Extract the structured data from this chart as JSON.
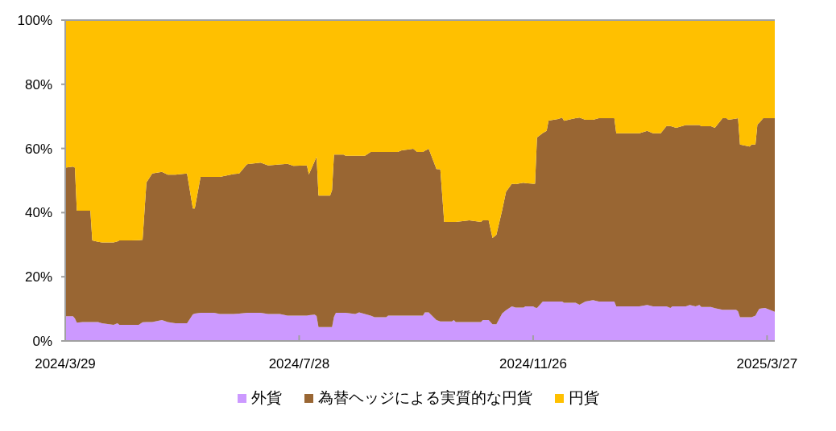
{
  "chart_data": {
    "type": "area",
    "stacked": true,
    "legend": "bottom",
    "x": [
      "2024-03-29",
      "2024-04-02",
      "2024-04-03",
      "2024-04-04",
      "2024-04-07",
      "2024-04-11",
      "2024-04-12",
      "2024-04-15",
      "2024-04-17",
      "2024-04-23",
      "2024-04-25",
      "2024-04-26",
      "2024-05-02",
      "2024-05-06",
      "2024-05-08",
      "2024-05-10",
      "2024-05-13",
      "2024-05-18",
      "2024-05-21",
      "2024-05-25",
      "2024-05-31",
      "2024-06-03",
      "2024-06-04",
      "2024-06-07",
      "2024-06-14",
      "2024-06-17",
      "2024-06-24",
      "2024-06-27",
      "2024-07-01",
      "2024-07-08",
      "2024-07-12",
      "2024-07-18",
      "2024-07-22",
      "2024-07-25",
      "2024-08-01",
      "2024-08-02",
      "2024-08-05",
      "2024-08-06",
      "2024-08-07",
      "2024-08-13",
      "2024-08-14",
      "2024-08-15",
      "2024-08-16",
      "2024-08-20",
      "2024-08-21",
      "2024-08-26",
      "2024-08-28",
      "2024-08-31",
      "2024-09-03",
      "2024-09-05",
      "2024-09-11",
      "2024-09-12",
      "2024-09-17",
      "2024-09-19",
      "2024-09-25",
      "2024-09-27",
      "2024-09-30",
      "2024-10-01",
      "2024-10-03",
      "2024-10-07",
      "2024-10-09",
      "2024-10-11",
      "2024-10-15",
      "2024-10-16",
      "2024-10-17",
      "2024-10-24",
      "2024-10-30",
      "2024-10-31",
      "2024-11-03",
      "2024-11-05",
      "2024-11-07",
      "2024-11-10",
      "2024-11-12",
      "2024-11-15",
      "2024-11-17",
      "2024-11-21",
      "2024-11-22",
      "2024-11-26",
      "2024-11-27",
      "2024-11-28",
      "2024-12-01",
      "2024-12-03",
      "2024-12-04",
      "2024-12-09",
      "2024-12-11",
      "2024-12-12",
      "2024-12-16",
      "2024-12-18",
      "2024-12-20",
      "2024-12-23",
      "2024-12-27",
      "2024-12-30",
      "2025-01-07",
      "2025-01-08",
      "2025-01-20",
      "2025-01-24",
      "2025-01-27",
      "2025-01-31",
      "2025-02-03",
      "2025-02-05",
      "2025-02-06",
      "2025-02-08",
      "2025-02-13",
      "2025-02-15",
      "2025-02-18",
      "2025-02-20",
      "2025-02-21",
      "2025-02-26",
      "2025-02-28",
      "2025-03-04",
      "2025-03-06",
      "2025-03-07",
      "2025-03-11",
      "2025-03-12",
      "2025-03-13",
      "2025-03-18",
      "2025-03-19",
      "2025-03-21",
      "2025-03-22",
      "2025-03-23",
      "2025-03-25",
      "2025-03-26",
      "2025-03-31"
    ],
    "series": [
      {
        "name": "外貨",
        "color": "#cc99ff",
        "values": [
          7.7,
          7.7,
          7.0,
          5.7,
          5.9,
          5.9,
          5.9,
          5.9,
          5.5,
          5.0,
          5.5,
          5.0,
          5.0,
          5.0,
          5.8,
          5.9,
          5.9,
          6.5,
          5.9,
          5.5,
          5.5,
          8.3,
          8.5,
          8.8,
          8.8,
          8.4,
          8.4,
          8.5,
          8.8,
          8.8,
          8.4,
          8.4,
          7.9,
          7.9,
          7.9,
          8.0,
          8.2,
          7.8,
          4.3,
          4.3,
          4.3,
          7.5,
          8.8,
          8.8,
          8.8,
          8.4,
          8.9,
          8.4,
          7.9,
          7.4,
          7.4,
          7.9,
          7.9,
          7.9,
          7.9,
          7.9,
          7.9,
          8.9,
          8.9,
          6.5,
          6.1,
          6.1,
          6.1,
          6.5,
          5.9,
          5.9,
          5.9,
          6.5,
          6.5,
          5.2,
          5.2,
          8.6,
          9.6,
          10.8,
          10.4,
          10.4,
          10.8,
          10.8,
          10.4,
          10.3,
          12.3,
          12.3,
          12.3,
          12.3,
          12.3,
          11.9,
          11.9,
          11.9,
          11.3,
          12.3,
          12.7,
          12.3,
          12.3,
          10.8,
          10.8,
          11.2,
          10.8,
          10.8,
          10.8,
          10.3,
          10.8,
          10.8,
          10.8,
          11.2,
          10.8,
          11.2,
          10.6,
          10.6,
          10.2,
          9.7,
          9.7,
          9.7,
          9.7,
          9.2,
          7.4,
          7.4,
          7.4,
          7.9,
          9.0,
          10.0,
          10.2,
          10.3,
          9.1
        ]
      },
      {
        "name": "為替ヘッジによる実質的な円貨",
        "color": "#996633",
        "values": [
          46.3,
          46.6,
          47.0,
          34.9,
          34.7,
          34.7,
          25.4,
          25.0,
          25.2,
          25.7,
          25.5,
          26.3,
          26.3,
          26.4,
          25.7,
          43.5,
          46.3,
          46.2,
          45.9,
          46.3,
          46.7,
          33.0,
          32.8,
          42.3,
          42.3,
          42.7,
          43.6,
          43.7,
          46.3,
          46.8,
          46.3,
          46.6,
          47.3,
          46.7,
          46.8,
          43.9,
          47.8,
          49.6,
          41.0,
          41.0,
          42.7,
          50.6,
          49.3,
          49.3,
          48.9,
          49.3,
          48.8,
          49.3,
          51.0,
          51.5,
          51.5,
          51.0,
          51.0,
          51.5,
          52.0,
          51.0,
          51.0,
          50.4,
          51.0,
          47.1,
          47.4,
          31.0,
          31.0,
          30.6,
          31.2,
          31.7,
          31.2,
          31.1,
          31.1,
          26.9,
          27.9,
          32.2,
          36.9,
          38.2,
          38.5,
          38.9,
          38.4,
          38.2,
          38.6,
          53.1,
          52.5,
          53.2,
          56.4,
          56.9,
          57.3,
          56.7,
          57.3,
          57.5,
          58.3,
          56.6,
          56.2,
          57.1,
          57.1,
          53.9,
          53.9,
          54.3,
          53.9,
          53.9,
          56.2,
          56.7,
          56.0,
          55.6,
          56.5,
          56.1,
          56.5,
          56.1,
          56.3,
          56.3,
          56.2,
          59.7,
          59.7,
          59.2,
          59.6,
          60.2,
          53.8,
          53.2,
          53.8,
          53.3,
          58.4,
          58.0,
          59.2,
          59.1,
          60.3
        ]
      },
      {
        "name": "円貨",
        "color": "#ffc000",
        "values": [
          46.0,
          45.7,
          46.0,
          59.4,
          59.4,
          59.4,
          68.7,
          69.1,
          69.3,
          69.3,
          69.0,
          68.7,
          68.7,
          68.6,
          68.5,
          50.6,
          47.8,
          47.3,
          48.2,
          48.2,
          47.8,
          58.7,
          58.7,
          48.9,
          48.9,
          48.9,
          48.0,
          47.8,
          44.9,
          44.4,
          45.3,
          45.0,
          44.8,
          45.4,
          45.3,
          48.1,
          44.0,
          42.6,
          54.7,
          54.7,
          53.0,
          41.9,
          41.9,
          41.9,
          42.3,
          42.3,
          42.3,
          42.3,
          41.1,
          41.1,
          41.1,
          41.1,
          41.1,
          40.6,
          40.1,
          41.1,
          41.1,
          40.7,
          40.1,
          46.4,
          46.5,
          62.9,
          62.9,
          62.9,
          62.9,
          62.4,
          62.9,
          62.4,
          62.4,
          67.9,
          66.9,
          59.2,
          53.5,
          51.0,
          51.1,
          50.7,
          50.8,
          51.0,
          51.0,
          36.6,
          35.2,
          34.5,
          31.3,
          30.8,
          30.4,
          31.4,
          30.8,
          30.6,
          30.4,
          31.1,
          31.1,
          30.6,
          30.6,
          35.3,
          35.3,
          34.5,
          35.3,
          35.3,
          33.0,
          33.0,
          33.2,
          33.6,
          32.7,
          32.7,
          32.7,
          32.7,
          33.1,
          33.1,
          33.6,
          30.6,
          30.6,
          31.1,
          30.7,
          30.6,
          38.8,
          39.4,
          38.8,
          38.8,
          32.6,
          32.0,
          30.6,
          30.6,
          30.6
        ]
      }
    ],
    "xlim": [
      "2024-03-29",
      "2025-03-31"
    ],
    "xticks": [
      {
        "value": "2024-03-29",
        "label": "2024/3/29"
      },
      {
        "value": "2024-07-28",
        "label": "2024/7/28"
      },
      {
        "value": "2024-11-26",
        "label": "2024/11/26"
      },
      {
        "value": "2025-03-27",
        "label": "2025/3/27"
      }
    ],
    "ylim": [
      0,
      100
    ],
    "yticks": [
      {
        "value": 0,
        "label": "0%"
      },
      {
        "value": 20,
        "label": "20%"
      },
      {
        "value": 40,
        "label": "40%"
      },
      {
        "value": 60,
        "label": "60%"
      },
      {
        "value": 80,
        "label": "80%"
      },
      {
        "value": 100,
        "label": "100%"
      }
    ]
  }
}
